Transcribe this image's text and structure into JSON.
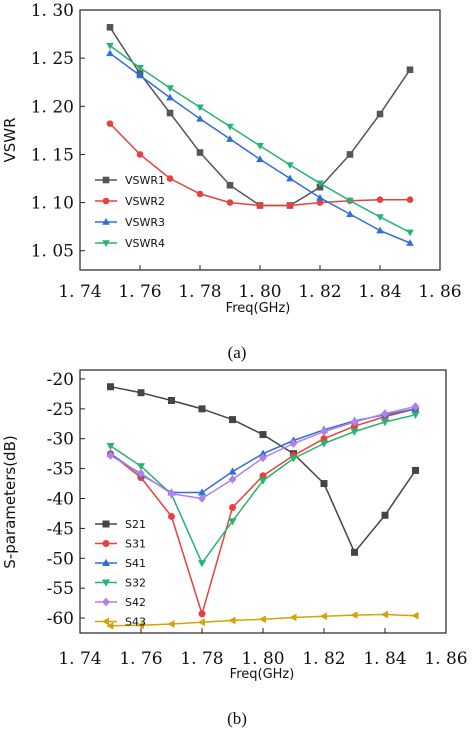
{
  "chart_data": [
    {
      "type": "line",
      "caption": "(a)",
      "title": "",
      "xlabel": "Freq(GHz)",
      "ylabel": "VSWR",
      "xlim": [
        1.74,
        1.86
      ],
      "ylim": [
        1.03,
        1.3
      ],
      "xticks": [
        "1. 74",
        "1. 76",
        "1. 78",
        "1. 80",
        "1. 82",
        "1. 84",
        "1. 86"
      ],
      "xtick_values": [
        1.74,
        1.76,
        1.78,
        1.8,
        1.82,
        1.84,
        1.86
      ],
      "yticks": [
        "1. 30",
        "1. 25",
        "1. 20",
        "1. 15",
        "1. 10",
        "1. 05"
      ],
      "ytick_values": [
        1.3,
        1.25,
        1.2,
        1.15,
        1.1,
        1.05
      ],
      "legend_position": "bottom-left",
      "grid": false,
      "x": [
        1.75,
        1.76,
        1.77,
        1.78,
        1.79,
        1.8,
        1.81,
        1.82,
        1.83,
        1.84,
        1.85
      ],
      "series": [
        {
          "name": "VSWR1",
          "color": "#555555",
          "marker": "square",
          "values": [
            1.282,
            1.234,
            1.193,
            1.152,
            1.118,
            1.097,
            1.097,
            1.116,
            1.15,
            1.192,
            1.238
          ]
        },
        {
          "name": "VSWR2",
          "color": "#e8413c",
          "marker": "circle",
          "values": [
            1.182,
            1.15,
            1.125,
            1.109,
            1.1,
            1.097,
            1.097,
            1.1,
            1.102,
            1.103,
            1.103
          ]
        },
        {
          "name": "VSWR3",
          "color": "#2e6fdc",
          "marker": "triangle-up",
          "values": [
            1.255,
            1.232,
            1.209,
            1.187,
            1.166,
            1.145,
            1.125,
            1.105,
            1.088,
            1.071,
            1.058
          ]
        },
        {
          "name": "VSWR4",
          "color": "#22b573",
          "marker": "triangle-down",
          "values": [
            1.263,
            1.24,
            1.219,
            1.199,
            1.179,
            1.159,
            1.139,
            1.12,
            1.102,
            1.085,
            1.069
          ]
        }
      ]
    },
    {
      "type": "line",
      "caption": "(b)",
      "title": "",
      "xlabel": "Freq(GHz)",
      "ylabel": "S-parameters(dB)",
      "xlim": [
        1.74,
        1.86
      ],
      "ylim": [
        -62.5,
        -18.5
      ],
      "xticks": [
        "1. 74",
        "1. 76",
        "1. 78",
        "1. 80",
        "1. 82",
        "1. 84",
        "1. 86"
      ],
      "xtick_values": [
        1.74,
        1.76,
        1.78,
        1.8,
        1.82,
        1.84,
        1.86
      ],
      "yticks": [
        "-20",
        "-25",
        "-30",
        "-35",
        "-40",
        "-45",
        "-50",
        "-55",
        "-60"
      ],
      "ytick_values": [
        -20,
        -25,
        -30,
        -35,
        -40,
        -45,
        -50,
        -55,
        -60
      ],
      "legend_position": "bottom-left",
      "grid": false,
      "x": [
        1.75,
        1.76,
        1.77,
        1.78,
        1.79,
        1.8,
        1.81,
        1.82,
        1.83,
        1.84,
        1.85
      ],
      "series": [
        {
          "name": "S21",
          "color": "#444444",
          "marker": "square",
          "values": [
            -21.3,
            -22.3,
            -23.6,
            -25.0,
            -26.8,
            -29.3,
            -32.5,
            -37.5,
            -49.0,
            -42.8,
            -35.3
          ]
        },
        {
          "name": "S31",
          "color": "#e8413c",
          "marker": "circle",
          "values": [
            -32.5,
            -36.5,
            -43.0,
            -59.3,
            -41.5,
            -36.2,
            -32.8,
            -30.0,
            -27.9,
            -26.3,
            -25.0
          ]
        },
        {
          "name": "S41",
          "color": "#2e6fdc",
          "marker": "triangle-up",
          "values": [
            -32.5,
            -36.0,
            -39.0,
            -39.0,
            -35.5,
            -32.5,
            -30.3,
            -28.5,
            -27.0,
            -26.0,
            -25.0
          ]
        },
        {
          "name": "S32",
          "color": "#22b573",
          "marker": "triangle-down",
          "values": [
            -31.2,
            -34.6,
            -39.3,
            -50.8,
            -43.8,
            -37.0,
            -33.3,
            -30.8,
            -28.8,
            -27.2,
            -26.0
          ]
        },
        {
          "name": "S42",
          "color": "#b57ee8",
          "marker": "diamond",
          "values": [
            -32.8,
            -35.8,
            -39.2,
            -40.0,
            -36.8,
            -33.2,
            -30.8,
            -28.8,
            -27.2,
            -25.8,
            -24.6
          ]
        },
        {
          "name": "S43",
          "color": "#d4a20a",
          "marker": "triangle-left",
          "values": [
            -61.3,
            -61.2,
            -61.0,
            -60.7,
            -60.4,
            -60.2,
            -59.9,
            -59.7,
            -59.5,
            -59.4,
            -59.6
          ]
        }
      ]
    }
  ]
}
